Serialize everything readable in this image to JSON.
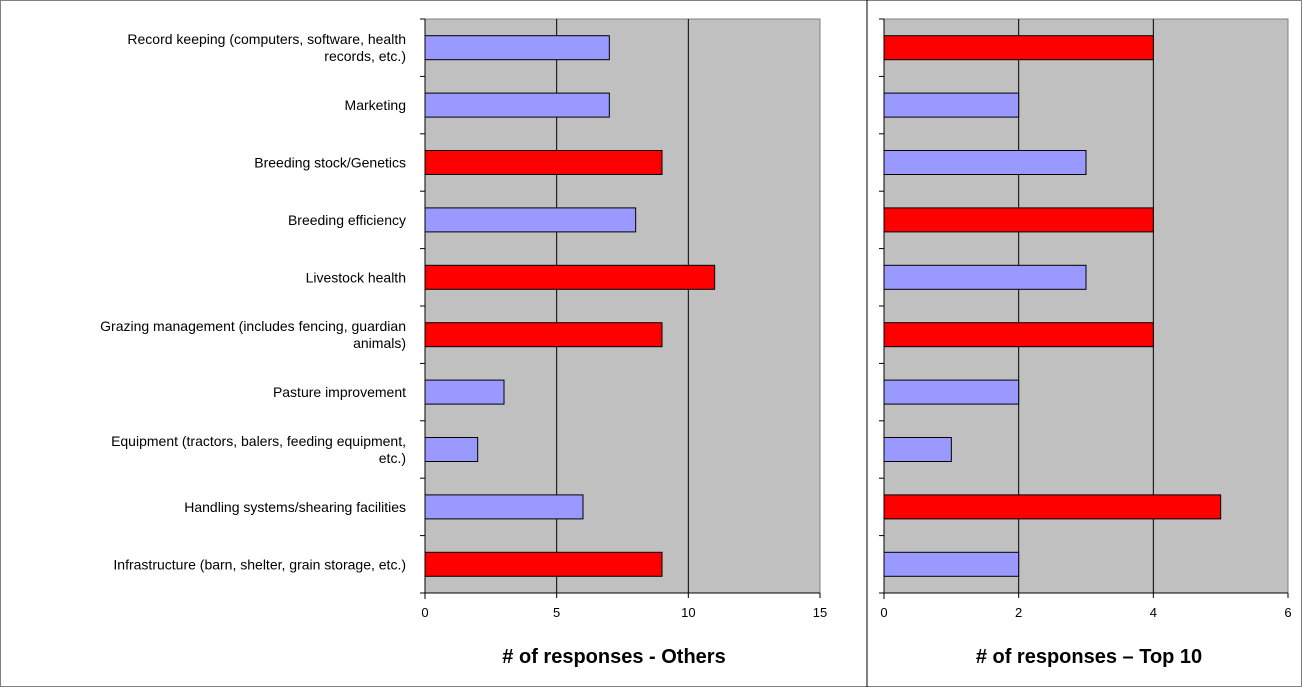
{
  "chart_data": [
    {
      "type": "bar",
      "orientation": "horizontal",
      "xlabel": "# of responses - Others",
      "xlim": [
        0,
        15
      ],
      "xticks": [
        0,
        5,
        10,
        15
      ],
      "grid": true,
      "categories": [
        [
          "Record keeping (computers, software, health",
          "records, etc.)"
        ],
        [
          "Marketing"
        ],
        [
          "Breeding stock/Genetics"
        ],
        [
          "Breeding efficiency"
        ],
        [
          "Livestock health"
        ],
        [
          "Grazing management (includes fencing, guardian",
          "animals)"
        ],
        [
          "Pasture improvement"
        ],
        [
          "Equipment (tractors, balers, feeding equipment,",
          "etc.)"
        ],
        [
          "Handling systems/shearing facilities"
        ],
        [
          "Infrastructure (barn, shelter, grain storage, etc.)"
        ]
      ],
      "values": [
        7,
        7,
        9,
        8,
        11,
        9,
        3,
        2,
        6,
        9
      ],
      "highlighted": [
        false,
        false,
        true,
        false,
        true,
        true,
        false,
        false,
        false,
        true
      ]
    },
    {
      "type": "bar",
      "orientation": "horizontal",
      "xlabel": "# of responses – Top 10",
      "xlim": [
        0,
        6
      ],
      "xticks": [
        0,
        2,
        4,
        6
      ],
      "grid": true,
      "values": [
        4,
        2,
        3,
        4,
        3,
        4,
        2,
        1,
        5,
        2
      ],
      "highlighted": [
        true,
        false,
        false,
        true,
        false,
        true,
        false,
        false,
        true,
        false
      ]
    }
  ],
  "colors": {
    "plot_background": "#c0c0c0",
    "highlight_bar": "#ff0000",
    "normal_bar": "#9999ff",
    "bar_outline": "#000000",
    "grid": "#000000"
  }
}
